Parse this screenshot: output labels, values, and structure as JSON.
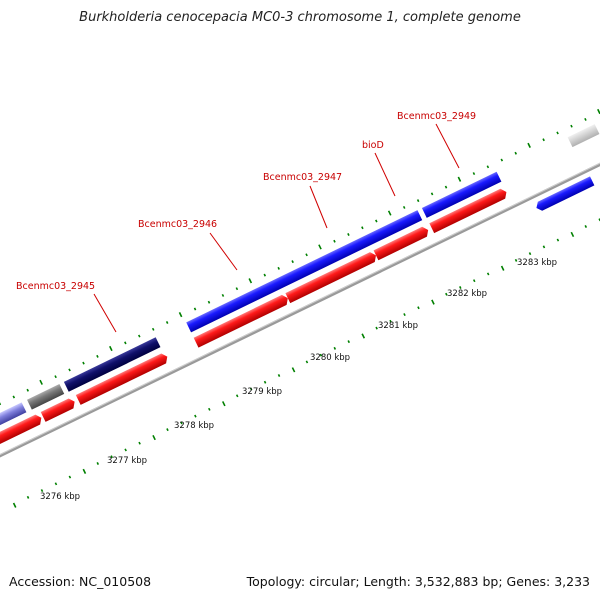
{
  "title": "Burkholderia cenocepacia MC0-3 chromosome 1, complete genome",
  "footer": {
    "accession": "Accession: NC_010508",
    "summary": "Topology: circular; Length: 3,532,883 bp; Genes: 3,233"
  },
  "colors": {
    "backbone": "#8a8a8a",
    "forward_gene": "#0000ee",
    "forward_gene_dark": "#00007a",
    "reverse_gene": "#ee0000",
    "pseudo_gene": "#666666",
    "label": "#c80000",
    "tick": "#008000"
  },
  "gene_labels": [
    {
      "id": "g2945",
      "text": "Bcenmc03_2945"
    },
    {
      "id": "g2946",
      "text": "Bcenmc03_2946"
    },
    {
      "id": "g2947",
      "text": "Bcenmc03_2947"
    },
    {
      "id": "bioD",
      "text": "bioD"
    },
    {
      "id": "g2949",
      "text": "Bcenmc03_2949"
    }
  ],
  "kbp_labels": [
    {
      "id": "k3276",
      "text": "3276 kbp"
    },
    {
      "id": "k3277",
      "text": "3277 kbp"
    },
    {
      "id": "k3278",
      "text": "3278 kbp"
    },
    {
      "id": "k3279",
      "text": "3279 kbp"
    },
    {
      "id": "k3280",
      "text": "3280 kbp"
    },
    {
      "id": "k3281",
      "text": "3281 kbp"
    },
    {
      "id": "k3282",
      "text": "3282 kbp"
    },
    {
      "id": "k3283",
      "text": "3283 kbp"
    }
  ]
}
